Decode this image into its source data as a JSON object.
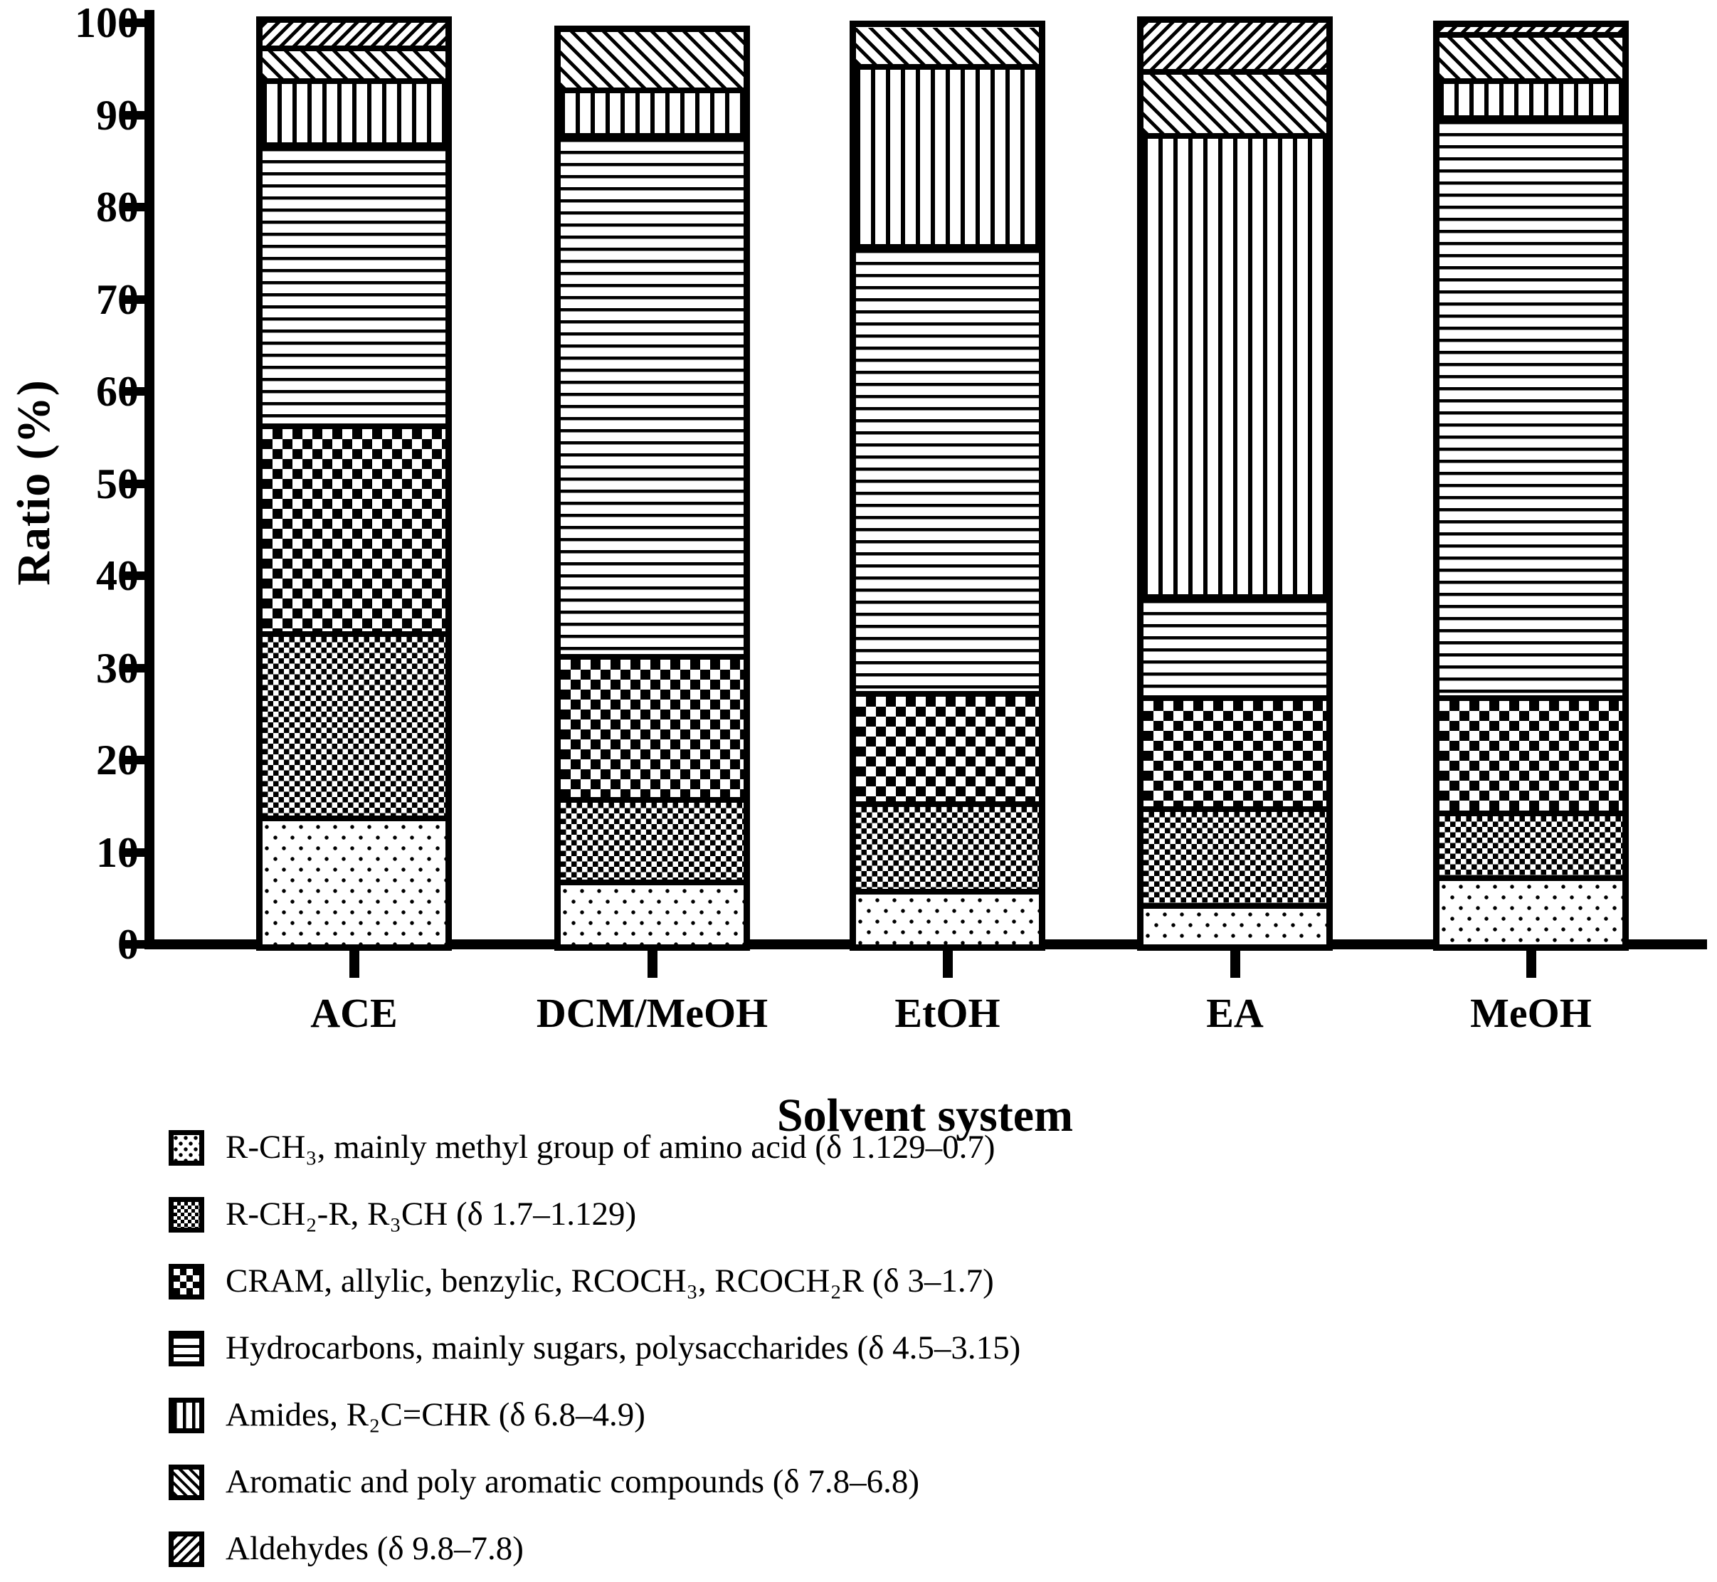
{
  "chart_data": {
    "type": "bar",
    "subtype": "stacked",
    "title": "",
    "xlabel": "Solvent system",
    "ylabel": "Ratio (%)",
    "ylim": [
      0,
      100
    ],
    "yticks": [
      0,
      10,
      20,
      30,
      40,
      50,
      60,
      70,
      80,
      90,
      100
    ],
    "grid": false,
    "legend_position": "bottom-left",
    "categories": [
      "ACE",
      "DCM/MeOH",
      "EtOH",
      "EA",
      "MeOH"
    ],
    "series": [
      {
        "name": "R-CH₃, mainly methyl group of amino acid (δ 1.129–0.7)",
        "pattern": "dots",
        "values": [
          14,
          7,
          6,
          4.5,
          7.5
        ]
      },
      {
        "name": "R-CH₂-R, R₃CH (δ 1.7–1.129)",
        "pattern": "checker-fine",
        "values": [
          20,
          9,
          9.5,
          10.5,
          7
        ]
      },
      {
        "name": "CRAM, allylic, benzylic, RCOCH₃, RCOCH₂R (δ 3–1.7)",
        "pattern": "checker-coarse",
        "values": [
          22.5,
          15.5,
          12,
          12,
          12.5
        ]
      },
      {
        "name": "Hydrocarbons, mainly sugars, polysaccharides (δ 4.5–3.15)",
        "pattern": "hlines",
        "values": [
          30.5,
          56.5,
          48.5,
          11,
          63
        ]
      },
      {
        "name": "Amides, R₂C=CHR (δ 6.8–4.9)",
        "pattern": "vlines",
        "values": [
          7,
          5,
          19.5,
          50,
          4
        ]
      },
      {
        "name": "Aromatic and poly aromatic compounds (δ 7.8–6.8)",
        "pattern": "diag-forward",
        "values": [
          3.5,
          6,
          4,
          7,
          5
        ]
      },
      {
        "name": "Aldehydes (δ 9.8–7.8)",
        "pattern": "diag-back",
        "values": [
          2.5,
          0,
          0,
          5,
          0.5
        ]
      }
    ],
    "colors": {
      "foreground": "#000000",
      "background": "#ffffff"
    }
  }
}
